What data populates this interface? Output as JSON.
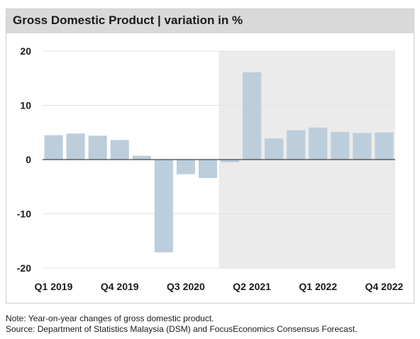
{
  "header": {
    "title": "Gross Domestic Product | variation in %"
  },
  "notes": {
    "note": "Note: Year-on-year changes of gross domestic product.",
    "source": "Source: Department of Statistics Malaysia (DSM) and FocusEconomics Consensus Forecast."
  },
  "colors": {
    "bar": "#bccddb",
    "forecast_shade": "#ebebeb",
    "title_bg": "#d9d9d9"
  },
  "chart_data": {
    "type": "bar",
    "categories": [
      "Q1 2019",
      "Q2 2019",
      "Q3 2019",
      "Q4 2019",
      "Q1 2020",
      "Q2 2020",
      "Q3 2020",
      "Q4 2020",
      "Q1 2021",
      "Q2 2021",
      "Q3 2021",
      "Q4 2021",
      "Q1 2022",
      "Q2 2022",
      "Q3 2022",
      "Q4 2022"
    ],
    "x_tick_labels": [
      "Q1 2019",
      "Q4 2019",
      "Q3 2020",
      "Q2 2021",
      "Q1 2022",
      "Q4 2022"
    ],
    "values": [
      4.5,
      4.8,
      4.4,
      3.6,
      0.7,
      -17.1,
      -2.7,
      -3.4,
      -0.5,
      16.1,
      3.9,
      5.4,
      5.9,
      5.1,
      4.9,
      5.0
    ],
    "ylim": [
      -20,
      20
    ],
    "y_ticks": [
      20,
      10,
      0,
      -10,
      -20
    ],
    "forecast_start_category": "Q1 2021",
    "title": "Gross Domestic Product | variation in %",
    "xlabel": "",
    "ylabel": ""
  }
}
